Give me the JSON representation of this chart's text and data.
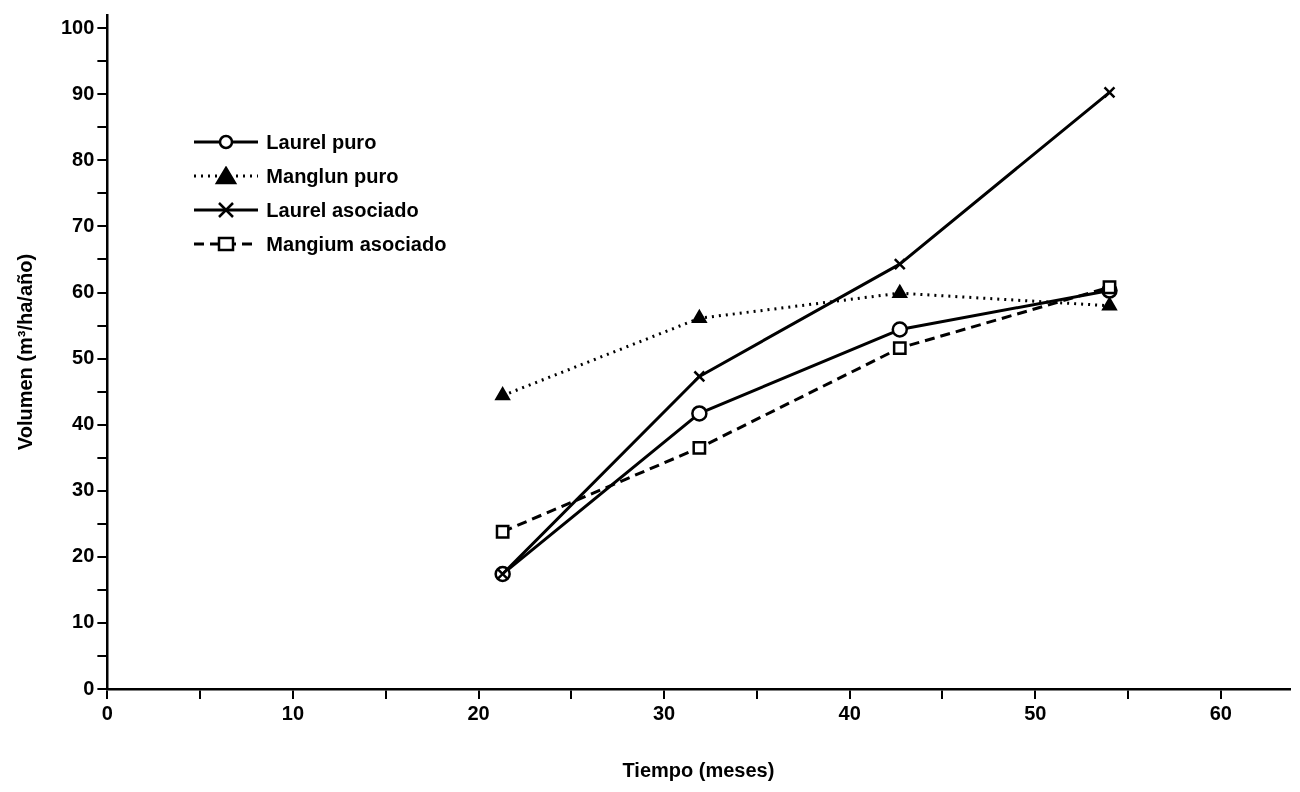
{
  "chart_data": {
    "type": "line",
    "xlabel": "Tiempo (meses)",
    "ylabel": "Volumen (m³/ha/año)",
    "xlim": [
      0,
      63.7
    ],
    "ylim": [
      0,
      102
    ],
    "xticks": [
      0,
      {
        "value": 5,
        "label": null
      },
      10,
      {
        "value": 15,
        "label": null
      },
      20,
      {
        "value": 25,
        "label": null
      },
      30,
      {
        "value": 35,
        "label": null
      },
      40,
      {
        "value": 45,
        "label": null
      },
      50,
      {
        "value": 55,
        "label": null
      },
      60
    ],
    "yticks": [
      0,
      {
        "value": 5,
        "label": null
      },
      10,
      {
        "value": 15,
        "label": null
      },
      20,
      {
        "value": 25,
        "label": null
      },
      30,
      {
        "value": 35,
        "label": null
      },
      40,
      {
        "value": 45,
        "label": null
      },
      50,
      {
        "value": 55,
        "label": null
      },
      60,
      {
        "value": 65,
        "label": null
      },
      70,
      {
        "value": 75,
        "label": null
      },
      80,
      {
        "value": 85,
        "label": null
      },
      90,
      {
        "value": 95,
        "label": null
      },
      100
    ],
    "x": [
      21.3,
      31.9,
      42.7,
      54
    ],
    "grid": false,
    "legend": "top left",
    "series": [
      {
        "name": "Laurel puro",
        "color": "#000000",
        "marker": "circle",
        "line_style": "solid",
        "values": [
          17.4,
          41.7,
          54.4,
          60.3
        ]
      },
      {
        "name": "Manglun puro",
        "color": "#000000",
        "marker": "triangle",
        "line_style": "dotted",
        "values": [
          44.4,
          56.1,
          59.9,
          58.0
        ]
      },
      {
        "name": "Laurel asociado",
        "color": "#000000",
        "marker": "cross",
        "line_style": "solid",
        "values": [
          17.4,
          47.3,
          64.3,
          90.3
        ]
      },
      {
        "name": "Mangium asociado",
        "color": "#000000",
        "marker": "square",
        "line_style": "dashed",
        "values": [
          23.8,
          36.5,
          51.6,
          60.8
        ]
      }
    ]
  }
}
